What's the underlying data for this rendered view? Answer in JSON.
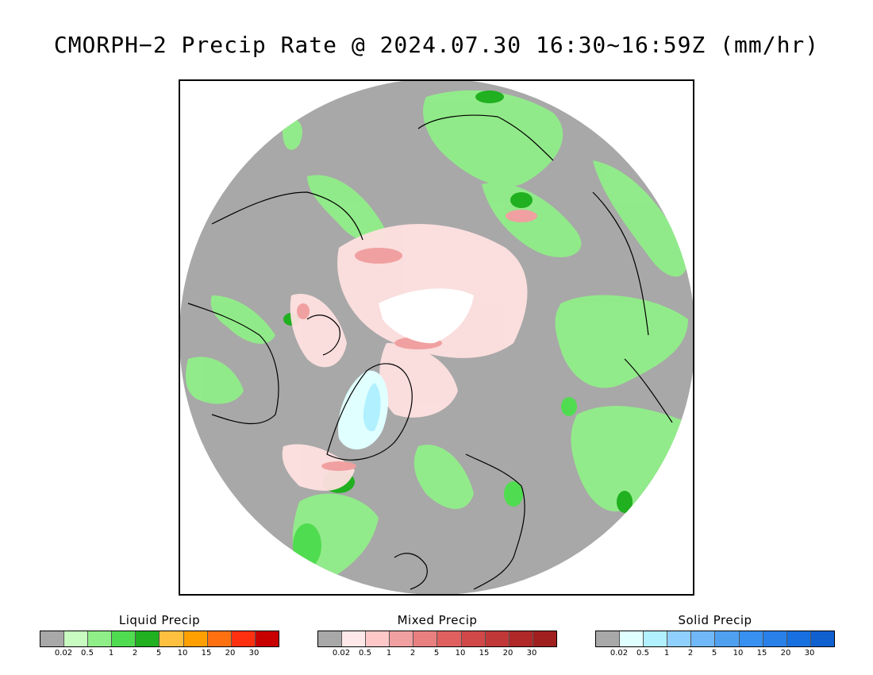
{
  "title": "CMORPH−2 Precip Rate @ 2024.07.30 16:30~16:59Z (mm/hr)",
  "colors": {
    "no_precip": "#a8a8a8",
    "no_data": "#ffffff",
    "coastline": "#000000"
  },
  "legends": [
    {
      "id": "liquid",
      "title": "Liquid Precip",
      "tick_labels": [
        "0.02",
        "0.5",
        "1",
        "2",
        "5",
        "10",
        "15",
        "20",
        "30"
      ],
      "swatches": [
        "#a8a8a8",
        "#c8fcc0",
        "#90ee88",
        "#50dc50",
        "#20b020",
        "#ffc040",
        "#ffa000",
        "#ff7010",
        "#ff3010",
        "#c80000"
      ]
    },
    {
      "id": "mixed",
      "title": "Mixed Precip",
      "tick_labels": [
        "0.02",
        "0.5",
        "1",
        "2",
        "5",
        "10",
        "15",
        "20",
        "30"
      ],
      "swatches": [
        "#a8a8a8",
        "#ffe8e8",
        "#ffc8c8",
        "#f0a0a0",
        "#e88080",
        "#e06060",
        "#d04848",
        "#c03838",
        "#b02828",
        "#a02020"
      ]
    },
    {
      "id": "solid",
      "title": "Solid Precip",
      "tick_labels": [
        "0.02",
        "0.5",
        "1",
        "2",
        "5",
        "10",
        "15",
        "20",
        "30"
      ],
      "swatches": [
        "#a8a8a8",
        "#e0ffff",
        "#b0f0ff",
        "#90d0ff",
        "#70b8f8",
        "#50a0f0",
        "#3890f0",
        "#2880e8",
        "#1870e0",
        "#1060d0"
      ]
    }
  ]
}
